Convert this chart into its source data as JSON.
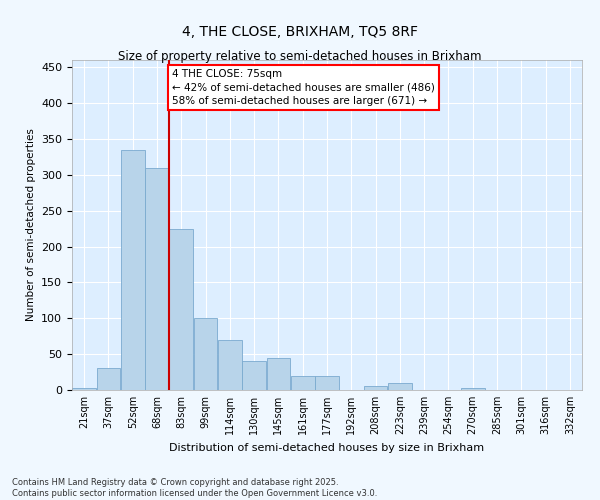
{
  "title": "4, THE CLOSE, BRIXHAM, TQ5 8RF",
  "subtitle": "Size of property relative to semi-detached houses in Brixham",
  "xlabel": "Distribution of semi-detached houses by size in Brixham",
  "ylabel": "Number of semi-detached properties",
  "bar_color": "#b8d4ea",
  "bar_edge_color": "#7aaacf",
  "background_color": "#ddeeff",
  "grid_color": "#ffffff",
  "annotation_title": "4 THE CLOSE: 75sqm",
  "annotation_line1": "← 42% of semi-detached houses are smaller (486)",
  "annotation_line2": "58% of semi-detached houses are larger (671) →",
  "vline_color": "#cc0000",
  "categories": [
    "21sqm",
    "37sqm",
    "52sqm",
    "68sqm",
    "83sqm",
    "99sqm",
    "114sqm",
    "130sqm",
    "145sqm",
    "161sqm",
    "177sqm",
    "192sqm",
    "208sqm",
    "223sqm",
    "239sqm",
    "254sqm",
    "270sqm",
    "285sqm",
    "301sqm",
    "316sqm",
    "332sqm"
  ],
  "bin_left_edges": [
    13,
    29,
    45,
    61,
    77,
    93,
    109,
    125,
    141,
    157,
    173,
    189,
    205,
    221,
    237,
    253,
    269,
    285,
    301,
    317,
    333
  ],
  "bin_width": 16,
  "values": [
    3,
    30,
    335,
    310,
    225,
    100,
    70,
    40,
    45,
    20,
    20,
    0,
    5,
    10,
    0,
    0,
    3,
    0,
    0,
    0,
    0
  ],
  "vline_x_data": 77,
  "ylim": [
    0,
    460
  ],
  "yticks": [
    0,
    50,
    100,
    150,
    200,
    250,
    300,
    350,
    400,
    450
  ],
  "xlim_left": 13,
  "xlim_right": 349,
  "footnote1": "Contains HM Land Registry data © Crown copyright and database right 2025.",
  "footnote2": "Contains public sector information licensed under the Open Government Licence v3.0."
}
